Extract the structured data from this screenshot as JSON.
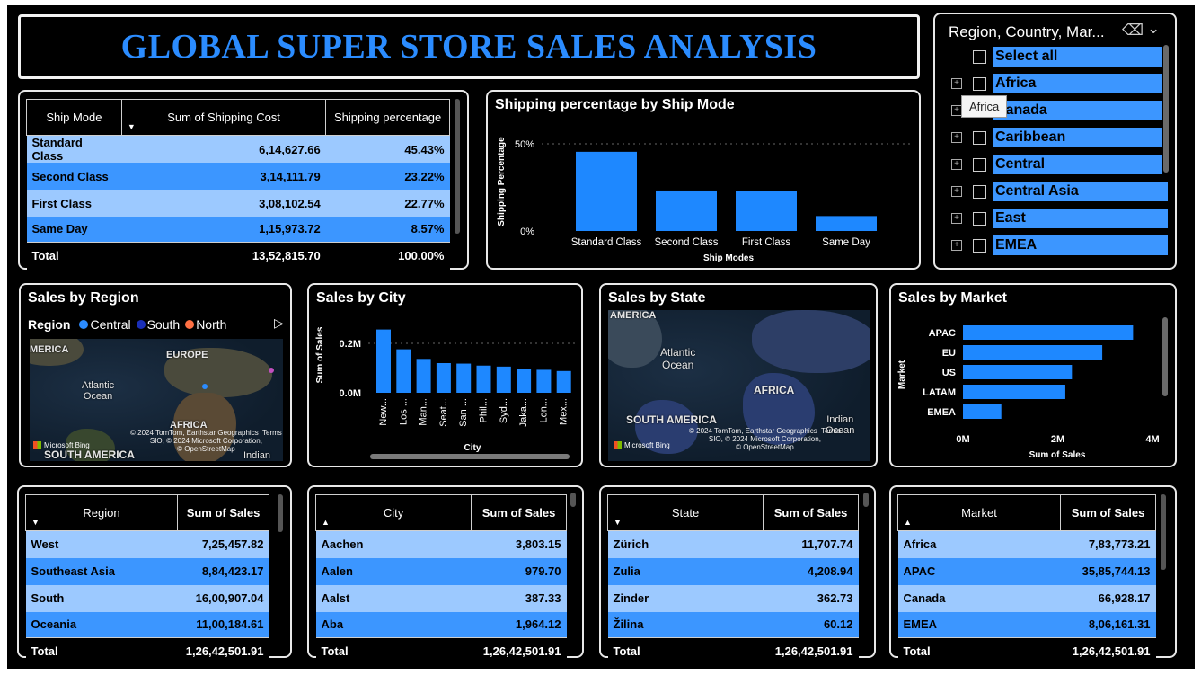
{
  "title": "GLOBAL SUPER STORE SALES ANALYSIS",
  "colors": {
    "bar": "#1e88ff",
    "rowLight": "#9cc9ff",
    "rowDark": "#3c96ff",
    "title": "#2b8cff"
  },
  "shipTable": {
    "headers": [
      "Ship Mode",
      "Sum of Shipping Cost",
      "Shipping percentage"
    ],
    "rows": [
      [
        "Standard Class",
        "6,14,627.66",
        "45.43%"
      ],
      [
        "Second Class",
        "3,14,111.79",
        "23.22%"
      ],
      [
        "First Class",
        "3,08,102.54",
        "22.77%"
      ],
      [
        "Same Day",
        "1,15,973.72",
        "8.57%"
      ]
    ],
    "total": [
      "Total",
      "13,52,815.70",
      "100.00%"
    ]
  },
  "shipChart": {
    "title": "Shipping percentage by Ship Mode",
    "ylabel": "Shipping Percentage",
    "xlabel": "Ship Modes",
    "ticks": [
      "50%",
      "0%"
    ]
  },
  "slicer": {
    "title": "Region, Country, Mar...",
    "tooltip": "Africa",
    "items": [
      "Select all",
      "Africa",
      "Canada",
      "Caribbean",
      "Central",
      "Central Asia",
      "East",
      "EMEA"
    ]
  },
  "salesRegion": {
    "title": "Sales by Region",
    "legendLabel": "Region",
    "legend": [
      {
        "name": "Central",
        "color": "#2b8cff"
      },
      {
        "name": "South",
        "color": "#1a2fb8"
      },
      {
        "name": "North",
        "color": "#ff7043"
      }
    ],
    "mapLabels": [
      "MERICA",
      "EUROPE",
      "Atlantic\nOcean",
      "AFRICA",
      "SOUTH AMERICA",
      "Indian"
    ],
    "attribution": "© 2024 TomTom, Earthstar Geographics  Terms\nSIO, © 2024 Microsoft Corporation,\n© OpenStreetMap",
    "bing": "Microsoft Bing"
  },
  "salesCity": {
    "title": "Sales by City",
    "ylabel": "Sum of Sales",
    "xlabel": "City",
    "ticks": [
      "0.2M",
      "0.0M"
    ]
  },
  "salesState": {
    "title": "Sales by State",
    "mapLabels": [
      "AMERICA",
      "Atlantic\nOcean",
      "AFRICA",
      "SOUTH AMERICA",
      "Indian\nOcean"
    ],
    "attribution": "© 2024 TomTom, Earthstar Geographics  Terms\nSIO, © 2024 Microsoft Corporation,\n© OpenStreetMap",
    "bing": "Microsoft Bing"
  },
  "salesMarket": {
    "title": "Sales by Market",
    "ylabel": "Market",
    "xlabel": "Sum of Sales",
    "ticks": [
      "0M",
      "2M",
      "4M"
    ]
  },
  "regionTable": {
    "headers": [
      "Region",
      "Sum of Sales"
    ],
    "rows": [
      [
        "West",
        "7,25,457.82"
      ],
      [
        "Southeast Asia",
        "8,84,423.17"
      ],
      [
        "South",
        "16,00,907.04"
      ],
      [
        "Oceania",
        "11,00,184.61"
      ]
    ],
    "total": [
      "Total",
      "1,26,42,501.91"
    ]
  },
  "cityTable": {
    "headers": [
      "City",
      "Sum of Sales"
    ],
    "rows": [
      [
        "Aachen",
        "3,803.15"
      ],
      [
        "Aalen",
        "979.70"
      ],
      [
        "Aalst",
        "387.33"
      ],
      [
        "Aba",
        "1,964.12"
      ]
    ],
    "total": [
      "Total",
      "1,26,42,501.91"
    ]
  },
  "stateTable": {
    "headers": [
      "State",
      "Sum of Sales"
    ],
    "rows": [
      [
        "Zürich",
        "11,707.74"
      ],
      [
        "Zulia",
        "4,208.94"
      ],
      [
        "Zinder",
        "362.73"
      ],
      [
        "Žilina",
        "60.12"
      ]
    ],
    "total": [
      "Total",
      "1,26,42,501.91"
    ]
  },
  "marketTable": {
    "headers": [
      "Market",
      "Sum of Sales"
    ],
    "rows": [
      [
        "Africa",
        "7,83,773.21"
      ],
      [
        "APAC",
        "35,85,744.13"
      ],
      [
        "Canada",
        "66,928.17"
      ],
      [
        "EMEA",
        "8,06,161.31"
      ]
    ],
    "total": [
      "Total",
      "1,26,42,501.91"
    ]
  },
  "chart_data": [
    {
      "type": "bar",
      "title": "Shipping percentage by Ship Mode",
      "categories": [
        "Standard Class",
        "Second Class",
        "First Class",
        "Same Day"
      ],
      "values": [
        45.43,
        23.22,
        22.77,
        8.57
      ],
      "xlabel": "Ship Modes",
      "ylabel": "Shipping Percentage",
      "ylim": [
        0,
        50
      ]
    },
    {
      "type": "bar",
      "title": "Sales by City",
      "categories": [
        "New...",
        "Los ...",
        "Man...",
        "Seat...",
        "San ...",
        "Phil...",
        "Syd...",
        "Jaka...",
        "Lon...",
        "Mex..."
      ],
      "values": [
        0.256,
        0.176,
        0.137,
        0.12,
        0.118,
        0.11,
        0.106,
        0.097,
        0.093,
        0.088
      ],
      "xlabel": "City",
      "ylabel": "Sum of Sales",
      "ylim": [
        0,
        0.3
      ],
      "units": "M"
    },
    {
      "type": "bar",
      "orientation": "horizontal",
      "title": "Sales by Market",
      "categories": [
        "APAC",
        "EU",
        "US",
        "LATAM",
        "EMEA"
      ],
      "values": [
        3.59,
        2.94,
        2.3,
        2.16,
        0.81
      ],
      "xlabel": "Sum of Sales",
      "ylabel": "Market",
      "xlim": [
        0,
        4
      ],
      "units": "M"
    }
  ]
}
